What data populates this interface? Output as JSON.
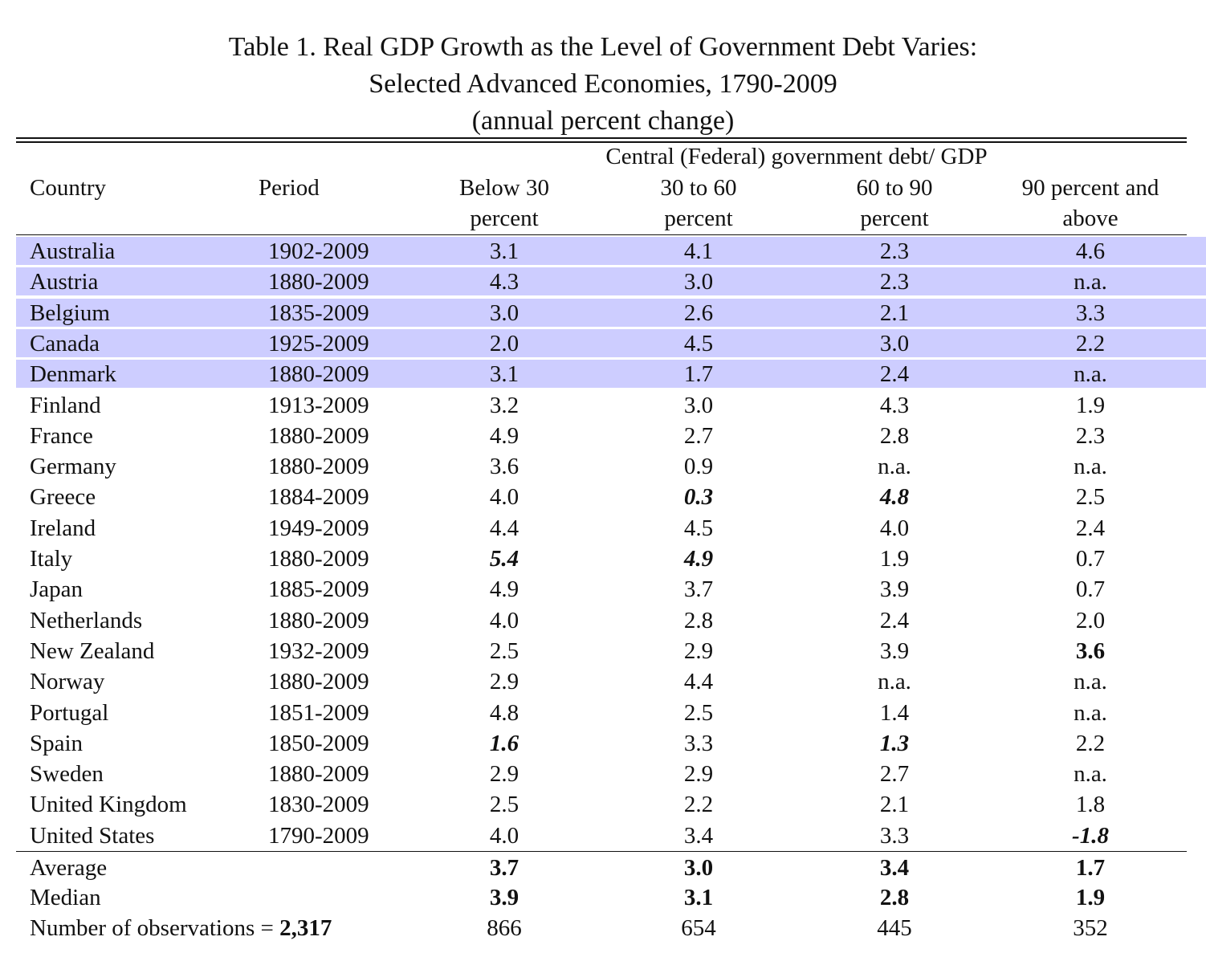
{
  "title": {
    "line1": "Table 1. Real GDP Growth as the Level of Government Debt Varies:",
    "line2": "Selected Advanced Economies, 1790-2009",
    "line3": "(annual percent change)"
  },
  "header": {
    "group": "Central (Federal) government debt/ GDP",
    "country": "Country",
    "period": "Period",
    "col1_l1": "Below 30",
    "col1_l2": "percent",
    "col2_l1": "30 to 60",
    "col2_l2": "percent",
    "col3_l1": "60 to 90",
    "col3_l2": "percent",
    "col4_l1": "90 percent and",
    "col4_l2": "above"
  },
  "rows": [
    {
      "country": "Australia",
      "period": "1902-2009",
      "v": [
        "3.1",
        "4.1",
        "2.3",
        "4.6"
      ],
      "style": [
        "",
        "",
        "",
        ""
      ],
      "highlight": true
    },
    {
      "country": "Austria",
      "period": "1880-2009",
      "v": [
        "4.3",
        "3.0",
        "2.3",
        "n.a."
      ],
      "style": [
        "",
        "",
        "",
        ""
      ],
      "highlight": true
    },
    {
      "country": "Belgium",
      "period": "1835-2009",
      "v": [
        "3.0",
        "2.6",
        "2.1",
        "3.3"
      ],
      "style": [
        "",
        "",
        "",
        ""
      ],
      "highlight": true
    },
    {
      "country": "Canada",
      "period": "1925-2009",
      "v": [
        "2.0",
        "4.5",
        "3.0",
        "2.2"
      ],
      "style": [
        "",
        "",
        "",
        ""
      ],
      "highlight": true
    },
    {
      "country": "Denmark",
      "period": "1880-2009",
      "v": [
        "3.1",
        "1.7",
        "2.4",
        "n.a."
      ],
      "style": [
        "",
        "",
        "",
        ""
      ],
      "highlight": true
    },
    {
      "country": "Finland",
      "period": "1913-2009",
      "v": [
        "3.2",
        "3.0",
        "4.3",
        "1.9"
      ],
      "style": [
        "",
        "",
        "",
        ""
      ],
      "highlight": false
    },
    {
      "country": "France",
      "period": "1880-2009",
      "v": [
        "4.9",
        "2.7",
        "2.8",
        "2.3"
      ],
      "style": [
        "",
        "",
        "",
        ""
      ],
      "highlight": false
    },
    {
      "country": "Germany",
      "period": "1880-2009",
      "v": [
        "3.6",
        "0.9",
        "n.a.",
        "n.a."
      ],
      "style": [
        "",
        "",
        "",
        ""
      ],
      "highlight": false
    },
    {
      "country": "Greece",
      "period": "1884-2009",
      "v": [
        "4.0",
        "0.3",
        "4.8",
        "2.5"
      ],
      "style": [
        "",
        "bi",
        "bi",
        ""
      ],
      "highlight": false
    },
    {
      "country": "Ireland",
      "period": "1949-2009",
      "v": [
        "4.4",
        "4.5",
        "4.0",
        "2.4"
      ],
      "style": [
        "",
        "",
        "",
        ""
      ],
      "highlight": false
    },
    {
      "country": "Italy",
      "period": "1880-2009",
      "v": [
        "5.4",
        "4.9",
        "1.9",
        "0.7"
      ],
      "style": [
        "bi",
        "bi",
        "",
        ""
      ],
      "highlight": false
    },
    {
      "country": "Japan",
      "period": "1885-2009",
      "v": [
        "4.9",
        "3.7",
        "3.9",
        "0.7"
      ],
      "style": [
        "",
        "",
        "",
        ""
      ],
      "highlight": false
    },
    {
      "country": "Netherlands",
      "period": "1880-2009",
      "v": [
        "4.0",
        "2.8",
        "2.4",
        "2.0"
      ],
      "style": [
        "",
        "",
        "",
        ""
      ],
      "highlight": false
    },
    {
      "country": "New Zealand",
      "period": "1932-2009",
      "v": [
        "2.5",
        "2.9",
        "3.9",
        "3.6"
      ],
      "style": [
        "",
        "",
        "",
        "bold"
      ],
      "highlight": false
    },
    {
      "country": "Norway",
      "period": "1880-2009",
      "v": [
        "2.9",
        "4.4",
        "n.a.",
        "n.a."
      ],
      "style": [
        "",
        "",
        "",
        ""
      ],
      "highlight": false
    },
    {
      "country": "Portugal",
      "period": "1851-2009",
      "v": [
        "4.8",
        "2.5",
        "1.4",
        "n.a."
      ],
      "style": [
        "",
        "",
        "",
        ""
      ],
      "highlight": false
    },
    {
      "country": "Spain",
      "period": "1850-2009",
      "v": [
        "1.6",
        "3.3",
        "1.3",
        "2.2"
      ],
      "style": [
        "bi",
        "",
        "bi",
        ""
      ],
      "highlight": false
    },
    {
      "country": "Sweden",
      "period": "1880-2009",
      "v": [
        "2.9",
        "2.9",
        "2.7",
        "n.a."
      ],
      "style": [
        "",
        "",
        "",
        ""
      ],
      "highlight": false
    },
    {
      "country": "United Kingdom",
      "period": "1830-2009",
      "v": [
        "2.5",
        "2.2",
        "2.1",
        "1.8"
      ],
      "style": [
        "",
        "",
        "",
        ""
      ],
      "highlight": false
    },
    {
      "country": "United States",
      "period": "1790-2009",
      "v": [
        "4.0",
        "3.4",
        "3.3",
        "-1.8"
      ],
      "style": [
        "",
        "",
        "",
        "bi"
      ],
      "highlight": false
    }
  ],
  "summary": {
    "average": {
      "label": "Average",
      "v": [
        "3.7",
        "3.0",
        "3.4",
        "1.7"
      ]
    },
    "median": {
      "label": "Median",
      "v": [
        "3.9",
        "3.1",
        "2.8",
        "1.9"
      ]
    },
    "observations": {
      "label": "Number of observations = ",
      "total": "2,317",
      "v": [
        "866",
        "654",
        "445",
        "352"
      ]
    }
  },
  "colors": {
    "highlight": "#cdcdff"
  }
}
